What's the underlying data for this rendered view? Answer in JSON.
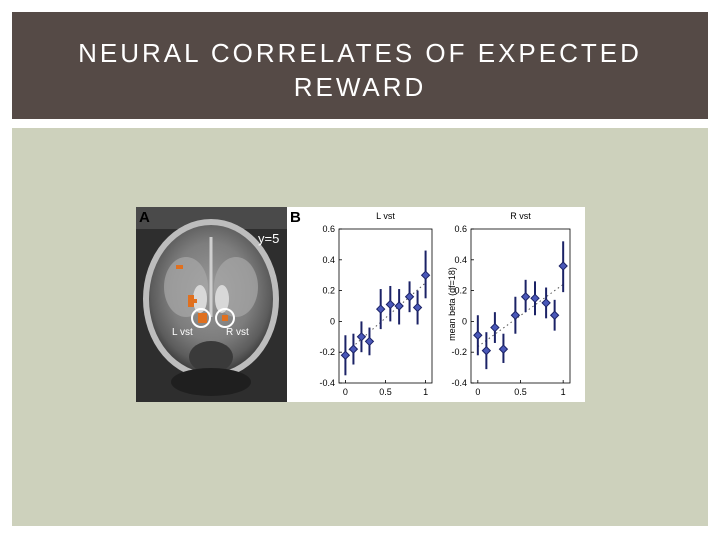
{
  "slide": {
    "title": "NEURAL CORRELATES OF EXPECTED\nREWARD"
  },
  "figure": {
    "panel_a": {
      "letter": "A",
      "slice_label": "y=5",
      "roi_left": "L vst",
      "roi_right": "R vst"
    },
    "panel_b": {
      "letter": "B"
    }
  },
  "chart_data": [
    {
      "type": "scatter",
      "title": "L vst",
      "xlabel": "",
      "ylabel": "mean beta (df=18)",
      "xlim": [
        -0.08,
        1.08
      ],
      "ylim": [
        -0.4,
        0.6
      ],
      "x_ticks": [
        "0",
        "0.5",
        "1"
      ],
      "y_ticks": [
        "-0.4",
        "-0.2",
        "0",
        "0.2",
        "0.4",
        "0.6"
      ],
      "trend": "dotted",
      "points": [
        {
          "x": 0.0,
          "y": -0.22,
          "lo": -0.35,
          "hi": -0.09
        },
        {
          "x": 0.1,
          "y": -0.18,
          "lo": -0.28,
          "hi": -0.08
        },
        {
          "x": 0.2,
          "y": -0.1,
          "lo": -0.2,
          "hi": 0.0
        },
        {
          "x": 0.3,
          "y": -0.13,
          "lo": -0.22,
          "hi": -0.04
        },
        {
          "x": 0.44,
          "y": 0.08,
          "lo": -0.05,
          "hi": 0.21
        },
        {
          "x": 0.56,
          "y": 0.11,
          "lo": 0.0,
          "hi": 0.23
        },
        {
          "x": 0.67,
          "y": 0.1,
          "lo": -0.02,
          "hi": 0.21
        },
        {
          "x": 0.8,
          "y": 0.16,
          "lo": 0.06,
          "hi": 0.26
        },
        {
          "x": 0.9,
          "y": 0.09,
          "lo": -0.02,
          "hi": 0.2
        },
        {
          "x": 1.0,
          "y": 0.3,
          "lo": 0.15,
          "hi": 0.46
        }
      ]
    },
    {
      "type": "scatter",
      "title": "R vst",
      "xlabel": "",
      "ylabel": "",
      "xlim": [
        -0.08,
        1.08
      ],
      "ylim": [
        -0.4,
        0.6
      ],
      "x_ticks": [
        "0",
        "0.5",
        "1"
      ],
      "y_ticks": [
        "-0.4",
        "-0.2",
        "0",
        "0.2",
        "0.4",
        "0.6"
      ],
      "trend": "dotted",
      "points": [
        {
          "x": 0.0,
          "y": -0.09,
          "lo": -0.22,
          "hi": 0.04
        },
        {
          "x": 0.1,
          "y": -0.19,
          "lo": -0.31,
          "hi": -0.07
        },
        {
          "x": 0.2,
          "y": -0.04,
          "lo": -0.14,
          "hi": 0.06
        },
        {
          "x": 0.3,
          "y": -0.18,
          "lo": -0.27,
          "hi": -0.08
        },
        {
          "x": 0.44,
          "y": 0.04,
          "lo": -0.08,
          "hi": 0.16
        },
        {
          "x": 0.56,
          "y": 0.16,
          "lo": 0.06,
          "hi": 0.27
        },
        {
          "x": 0.67,
          "y": 0.15,
          "lo": 0.04,
          "hi": 0.26
        },
        {
          "x": 0.8,
          "y": 0.12,
          "lo": 0.02,
          "hi": 0.22
        },
        {
          "x": 0.9,
          "y": 0.04,
          "lo": -0.06,
          "hi": 0.14
        },
        {
          "x": 1.0,
          "y": 0.36,
          "lo": 0.19,
          "hi": 0.52
        }
      ]
    }
  ],
  "colors": {
    "title_bar": "#554a46",
    "panel_bg": "#cdd1bc",
    "marker_fill": "#4a58b8",
    "marker_line": "#1b2266",
    "roi_blob": "#e0701f"
  }
}
